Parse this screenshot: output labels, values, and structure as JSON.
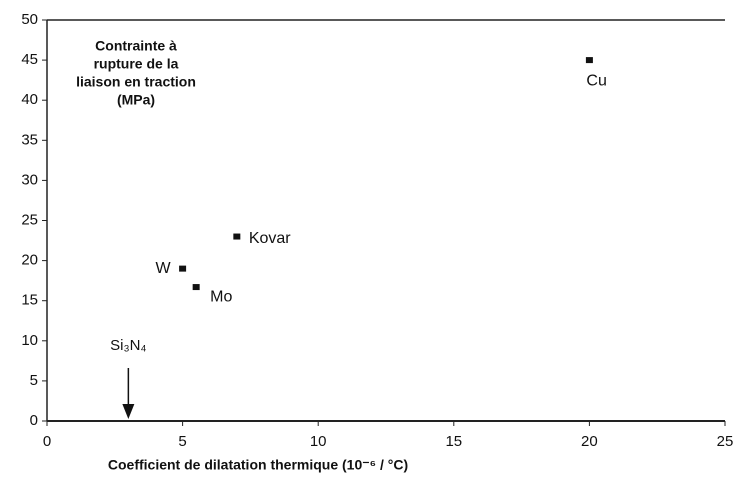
{
  "chart_data": {
    "type": "scatter",
    "y_label_lines": [
      "Contrainte à",
      "rupture de la",
      "liaison en traction",
      "(MPa)"
    ],
    "x_label": "Coefficient de dilatation thermique (10⁻⁶ / °C)",
    "x": [
      5,
      5.5,
      7,
      20
    ],
    "values": [
      19,
      16.7,
      23,
      45
    ],
    "point_labels": [
      "W",
      "Mo",
      "Kovar",
      "Cu"
    ],
    "color": "#111111",
    "annotation": {
      "text": "Si₃N₄",
      "x": 3
    },
    "xlim": [
      0,
      25
    ],
    "xticks": [
      0,
      5,
      10,
      15,
      20,
      25
    ],
    "ylim": [
      0,
      50
    ],
    "yticks": [
      0,
      5,
      10,
      15,
      20,
      25,
      30,
      35,
      40,
      45,
      50
    ],
    "grid": false
  }
}
